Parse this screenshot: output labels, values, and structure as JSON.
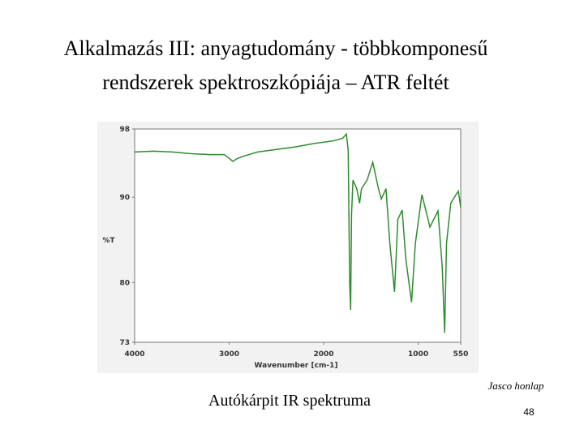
{
  "title": [
    "Alkalmazás III: anyagtudomány - többkomponesű",
    "rendszerek spektroszkópiája – ATR feltét"
  ],
  "chart_data": {
    "type": "line",
    "color": "#2e8b2e",
    "x_label": "Wavenumber [cm-1]",
    "y_label": "%T",
    "xlim": [
      4000,
      550
    ],
    "ylim": [
      73,
      98
    ],
    "xticks": [
      4000,
      3000,
      2000,
      1000,
      550
    ],
    "yticks": [
      73,
      80,
      90,
      98
    ],
    "x": [
      4000,
      3800,
      3600,
      3400,
      3200,
      3050,
      2960,
      2920,
      2850,
      2700,
      2500,
      2300,
      2100,
      1900,
      1800,
      1760,
      1740,
      1725,
      1715,
      1705,
      1690,
      1650,
      1620,
      1600,
      1540,
      1480,
      1420,
      1390,
      1340,
      1300,
      1250,
      1215,
      1170,
      1130,
      1070,
      1030,
      960,
      875,
      790,
      745,
      720,
      700,
      655,
      600,
      575,
      550
    ],
    "values": [
      95.3,
      95.4,
      95.3,
      95.1,
      95.0,
      95.0,
      94.2,
      94.5,
      94.8,
      95.3,
      95.6,
      95.9,
      96.3,
      96.6,
      96.9,
      97.4,
      95.5,
      80,
      76.8,
      88,
      92,
      91,
      89.3,
      91,
      92,
      94.1,
      91,
      89.8,
      91,
      84.6,
      78.9,
      87.4,
      88.5,
      82.7,
      77.7,
      84.6,
      90.3,
      86.5,
      88.4,
      81.7,
      74.1,
      84.6,
      89.3,
      90.3,
      90.7,
      88.8
    ]
  },
  "caption": "Autókárpit IR spektruma",
  "source": "Jasco honlap",
  "page_number": 48
}
